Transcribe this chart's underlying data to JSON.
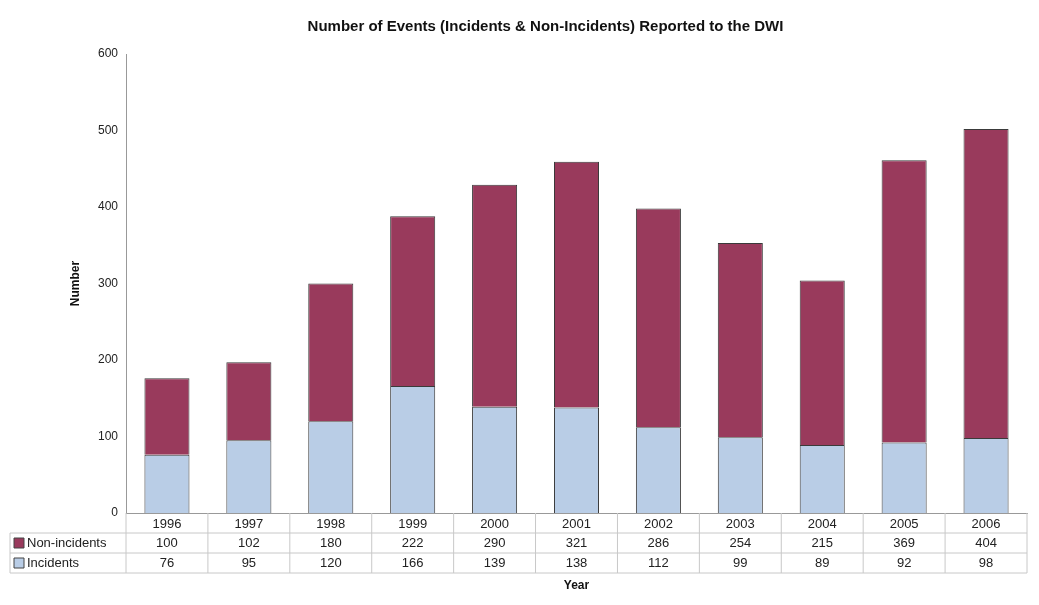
{
  "chart_data": {
    "type": "bar",
    "title": "Number of Events (Incidents & Non-Incidents) Reported to the DWI",
    "xlabel": "Year",
    "ylabel": "Number",
    "categories": [
      "1996",
      "1997",
      "1998",
      "1999",
      "2000",
      "2001",
      "2002",
      "2003",
      "2004",
      "2005",
      "2006"
    ],
    "series": [
      {
        "name": "Incidents",
        "color": "#b9cde6",
        "values": [
          76,
          95,
          120,
          166,
          139,
          138,
          112,
          99,
          89,
          92,
          98
        ]
      },
      {
        "name": "Non-incidents",
        "color": "#993a5c",
        "values": [
          100,
          102,
          180,
          222,
          290,
          321,
          286,
          254,
          215,
          369,
          404
        ]
      }
    ],
    "stacked": true,
    "ylim": [
      0,
      600
    ],
    "yticks": [
      0,
      100,
      200,
      300,
      400,
      500,
      600
    ],
    "data_labels": true,
    "legend": "bottom left",
    "grid": false
  }
}
